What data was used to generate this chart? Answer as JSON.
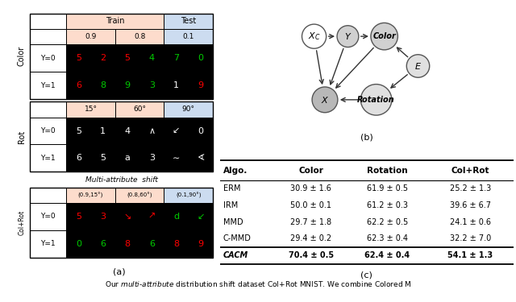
{
  "fig_width": 6.4,
  "fig_height": 3.75,
  "caption": "Our multi-attribute distribution shift dataset Col+Rot MNIST. We combine Colored M",
  "train_bg": "#FDDCCC",
  "test_bg": "#CCDCF0",
  "panel_c": {
    "header": [
      "Algo.",
      "Color",
      "Rotation",
      "Col+Rot"
    ],
    "rows": [
      [
        "ERM",
        "30.9 ± 1.6",
        "61.9 ± 0.5",
        "25.2 ± 1.3"
      ],
      [
        "IRM",
        "50.0 ± 0.1",
        "61.2 ± 0.3",
        "39.6 ± 6.7"
      ],
      [
        "MMD",
        "29.7 ± 1.8",
        "62.2 ± 0.5",
        "24.1 ± 0.6"
      ],
      [
        "C-MMD",
        "29.4 ± 0.2",
        "62.3 ± 0.4",
        "32.2 ± 7.0"
      ]
    ],
    "bold_row": [
      "CACM",
      "70.4 ± 0.5",
      "62.4 ± 0.4",
      "54.1 ± 1.3"
    ]
  }
}
